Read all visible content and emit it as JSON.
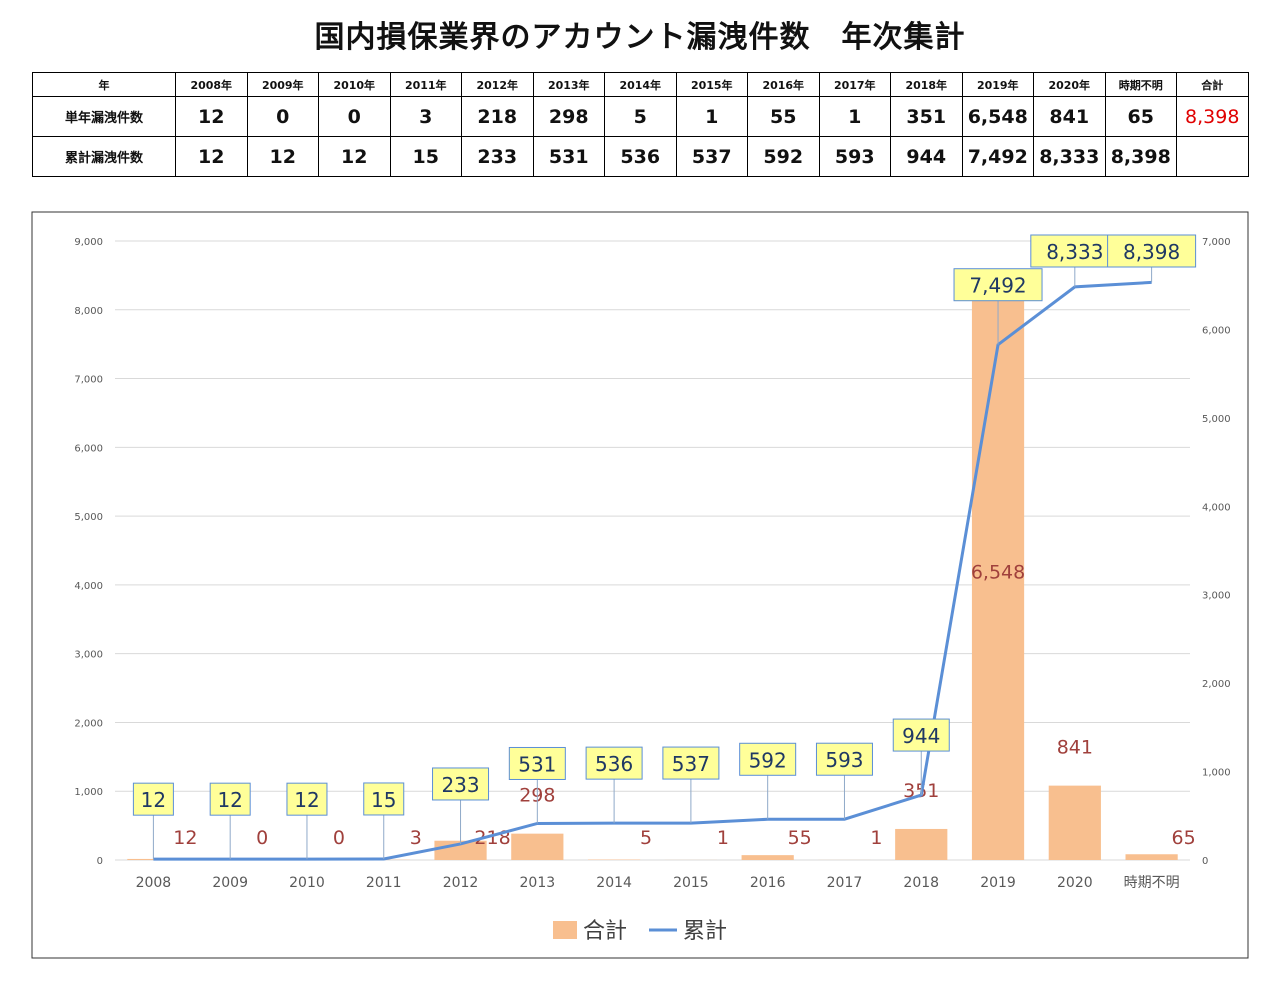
{
  "title": "国内損保業界のアカウント漏洩件数　年次集計",
  "table": {
    "header": [
      "年",
      "2008年",
      "2009年",
      "2010年",
      "2011年",
      "2012年",
      "2013年",
      "2014年",
      "2015年",
      "2016年",
      "2017年",
      "2018年",
      "2019年",
      "2020年",
      "時期不明",
      "合計"
    ],
    "rows": [
      {
        "label": "単年漏洩件数",
        "cells": [
          "12",
          "0",
          "0",
          "3",
          "218",
          "298",
          "5",
          "1",
          "55",
          "1",
          "351",
          "6,548",
          "841",
          "65",
          "8,398"
        ]
      },
      {
        "label": "累計漏洩件数",
        "cells": [
          "12",
          "12",
          "12",
          "15",
          "233",
          "531",
          "536",
          "537",
          "592",
          "593",
          "944",
          "7,492",
          "8,333",
          "8,398"
        ]
      }
    ]
  },
  "chart_data": {
    "type": "bar_line",
    "categories": [
      "2008",
      "2009",
      "2010",
      "2011",
      "2012",
      "2013",
      "2014",
      "2015",
      "2016",
      "2017",
      "2018",
      "2019",
      "2020",
      "時期不明"
    ],
    "series": [
      {
        "name": "合計",
        "color": "#f8bf8f",
        "axis": "y2",
        "type": "bar",
        "values": [
          12,
          0,
          0,
          3,
          218,
          298,
          5,
          1,
          55,
          1,
          351,
          6548,
          841,
          65
        ],
        "value_labels": [
          "12",
          "0",
          "0",
          "3",
          "218",
          "298",
          "5",
          "1",
          "55",
          "1",
          "351",
          "6,548",
          "841",
          "65"
        ]
      },
      {
        "name": "累計",
        "color": "#5b8fd6",
        "axis": "y",
        "type": "line",
        "values": [
          12,
          12,
          12,
          15,
          233,
          531,
          536,
          537,
          592,
          593,
          944,
          7492,
          8333,
          8398
        ],
        "value_labels": [
          "12",
          "12",
          "12",
          "15",
          "233",
          "531",
          "536",
          "537",
          "592",
          "593",
          "944",
          "7,492",
          "8,333",
          "8,398"
        ]
      }
    ],
    "ylim": [
      0,
      9000
    ],
    "yticks": [
      0,
      {
        "value": 1000,
        "label": "1,000"
      },
      {
        "value": 2000,
        "label": "2,000"
      },
      {
        "value": 3000,
        "label": "3,000"
      },
      {
        "value": 4000,
        "label": "4,000"
      },
      {
        "value": 5000,
        "label": "5,000"
      },
      {
        "value": 6000,
        "label": "6,000"
      },
      {
        "value": 7000,
        "label": "7,000"
      },
      {
        "value": 8000,
        "label": "8,000"
      },
      {
        "value": 9000,
        "label": "9,000"
      }
    ],
    "y2lim": [
      0,
      7000
    ],
    "y2ticks": [
      0,
      {
        "value": 1000,
        "label": "1,000"
      },
      {
        "value": 2000,
        "label": "2,000"
      },
      {
        "value": 3000,
        "label": "3,000"
      },
      {
        "value": 4000,
        "label": "4,000"
      },
      {
        "value": 5000,
        "label": "5,000"
      },
      {
        "value": 6000,
        "label": "6,000"
      },
      {
        "value": 7000,
        "label": "7,000"
      }
    ],
    "grid": true,
    "legend": "bottom"
  }
}
